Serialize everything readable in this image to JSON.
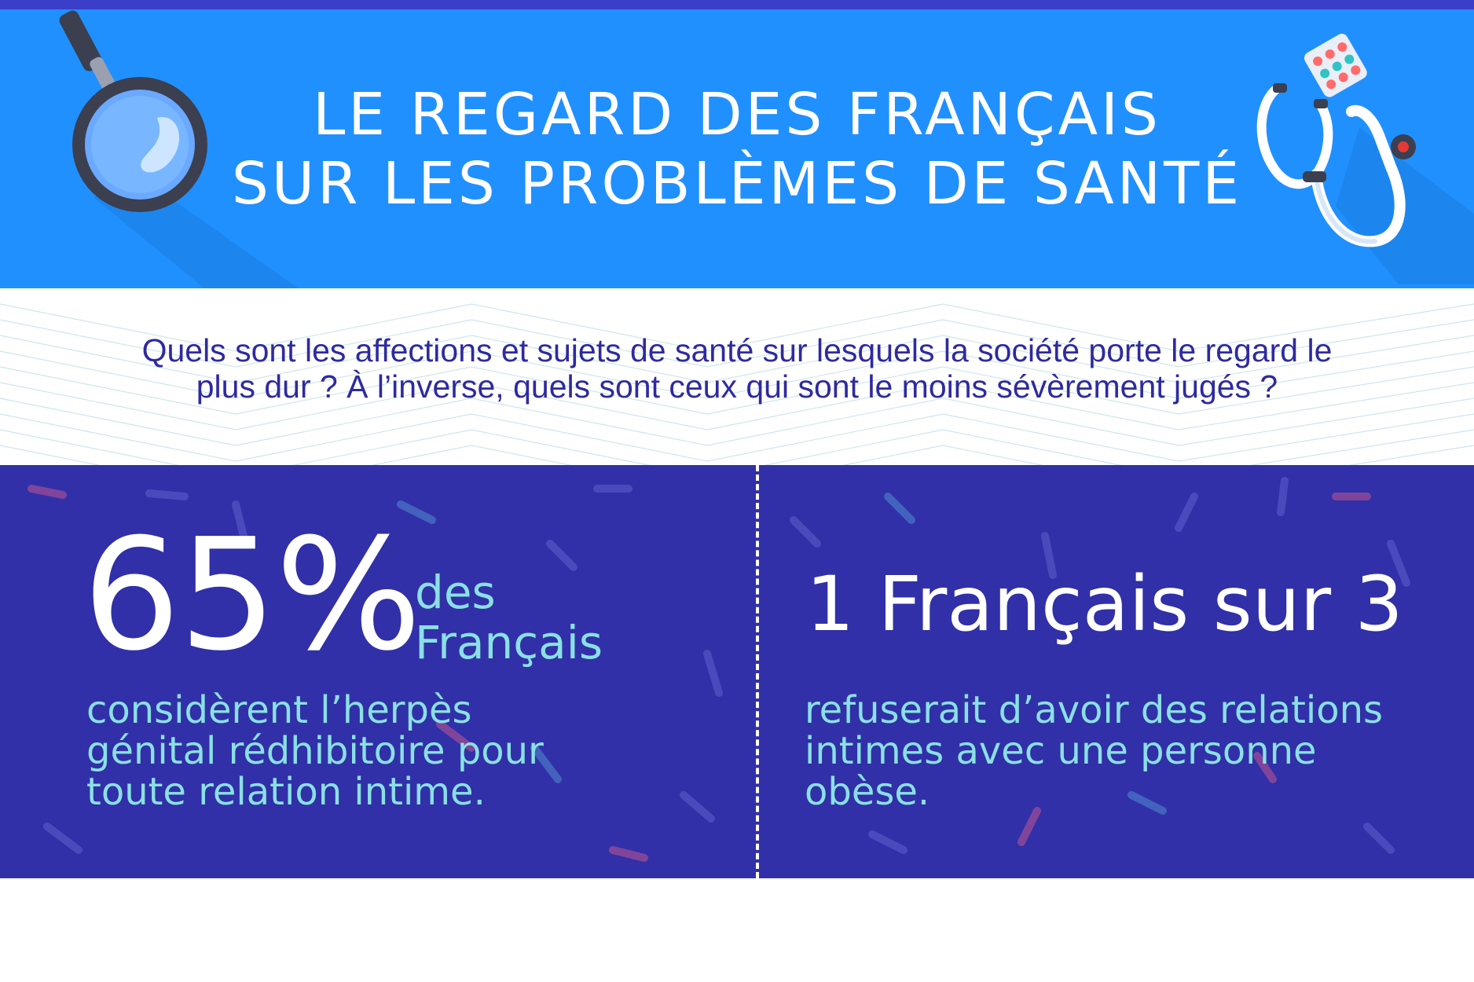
{
  "header": {
    "title_line1": "LE REGARD DES FRANÇAIS",
    "title_line2": "SUR LES PROBLÈMES DE SANTÉ",
    "icons": [
      "magnifier-icon",
      "stethoscope-icon",
      "pill-blister-icon"
    ]
  },
  "intro": {
    "line1": "Quels sont les affections et sujets de santé sur lesquels la société porte le regard le",
    "line2": "plus dur ? À l’inverse, quels sont ceux qui sont le moins sévèrement jugés ?"
  },
  "stat_left": {
    "value": "65%",
    "qualifier_line1": "des",
    "qualifier_line2": "Français",
    "desc_line1": "considèrent l’herpès",
    "desc_line2": "génital rédhibitoire pour",
    "desc_line3": "toute relation intime."
  },
  "stat_right": {
    "value": "1 Français sur 3",
    "desc_line1": "refuserait d’avoir des relations",
    "desc_line2": "intimes avec une personne",
    "desc_line3": "obèse."
  },
  "colors": {
    "top_strip": "#3a3ec8",
    "header_bg": "#2090ff",
    "intro_text": "#2e2aa0",
    "stats_bg": "#3130a8",
    "accent_cyan": "#8ae0e4"
  }
}
